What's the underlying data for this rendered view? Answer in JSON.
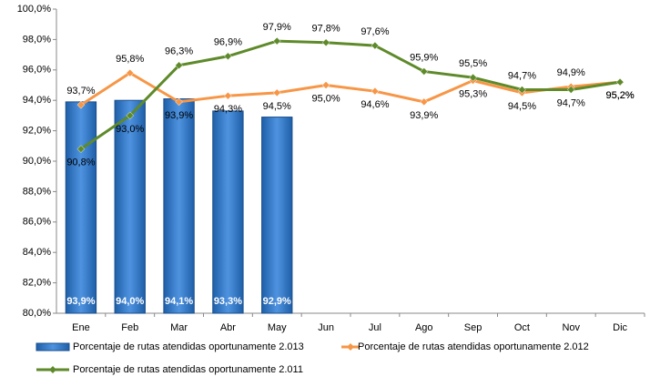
{
  "chart_data": {
    "type": "bar-line",
    "categories": [
      "Ene",
      "Feb",
      "Mar",
      "Abr",
      "May",
      "Jun",
      "Jul",
      "Ago",
      "Sep",
      "Oct",
      "Nov",
      "Dic"
    ],
    "series": [
      {
        "name": "Porcentaje de rutas atendidas oportunamente 2.013",
        "type": "bar",
        "color": "#2e74c4",
        "values": [
          93.9,
          94.0,
          94.1,
          93.3,
          92.9,
          null,
          null,
          null,
          null,
          null,
          null,
          null
        ],
        "value_labels": [
          "93,9%",
          "94,0%",
          "94,1%",
          "93,3%",
          "92,9%",
          null,
          null,
          null,
          null,
          null,
          null,
          null
        ]
      },
      {
        "name": "Porcentaje de rutas atendidas oportunamente 2.012",
        "type": "line",
        "color": "#f79646",
        "values": [
          93.7,
          95.8,
          93.9,
          94.3,
          94.5,
          95.0,
          94.6,
          93.9,
          95.3,
          94.5,
          94.9,
          95.2
        ],
        "value_labels": [
          "93,7%",
          "95,8%",
          "93,9%",
          "94,3%",
          "94,5%",
          "95,0%",
          "94,6%",
          "93,9%",
          "95,3%",
          "94,5%",
          "94,9%",
          "95,2%"
        ]
      },
      {
        "name": "Porcentaje de rutas atendidas oportunamente 2.011",
        "type": "line",
        "color": "#5e8a2a",
        "values": [
          90.8,
          93.0,
          96.3,
          96.9,
          97.9,
          97.8,
          97.6,
          95.9,
          95.5,
          94.7,
          94.7,
          95.2
        ],
        "value_labels": [
          "90,8%",
          "93,0%",
          "96,3%",
          "96,9%",
          "97,9%",
          "97,8%",
          "97,6%",
          "95,9%",
          "95,5%",
          "94,7%",
          "94,7%",
          "95,2%"
        ]
      }
    ],
    "ylim": [
      80,
      100
    ],
    "yticks": [
      {
        "value": 80,
        "label": "80,0%"
      },
      {
        "value": 82,
        "label": "82,0%"
      },
      {
        "value": 84,
        "label": "84,0%"
      },
      {
        "value": 86,
        "label": "86,0%"
      },
      {
        "value": 88,
        "label": "88,0%"
      },
      {
        "value": 90,
        "label": "90,0%"
      },
      {
        "value": 92,
        "label": "92,0%"
      },
      {
        "value": 94,
        "label": "94,0%"
      },
      {
        "value": 96,
        "label": "96,0%"
      },
      {
        "value": 98,
        "label": "98,0%"
      },
      {
        "value": 100,
        "label": "100,0%"
      }
    ],
    "grid": false,
    "legend": "bottom"
  }
}
